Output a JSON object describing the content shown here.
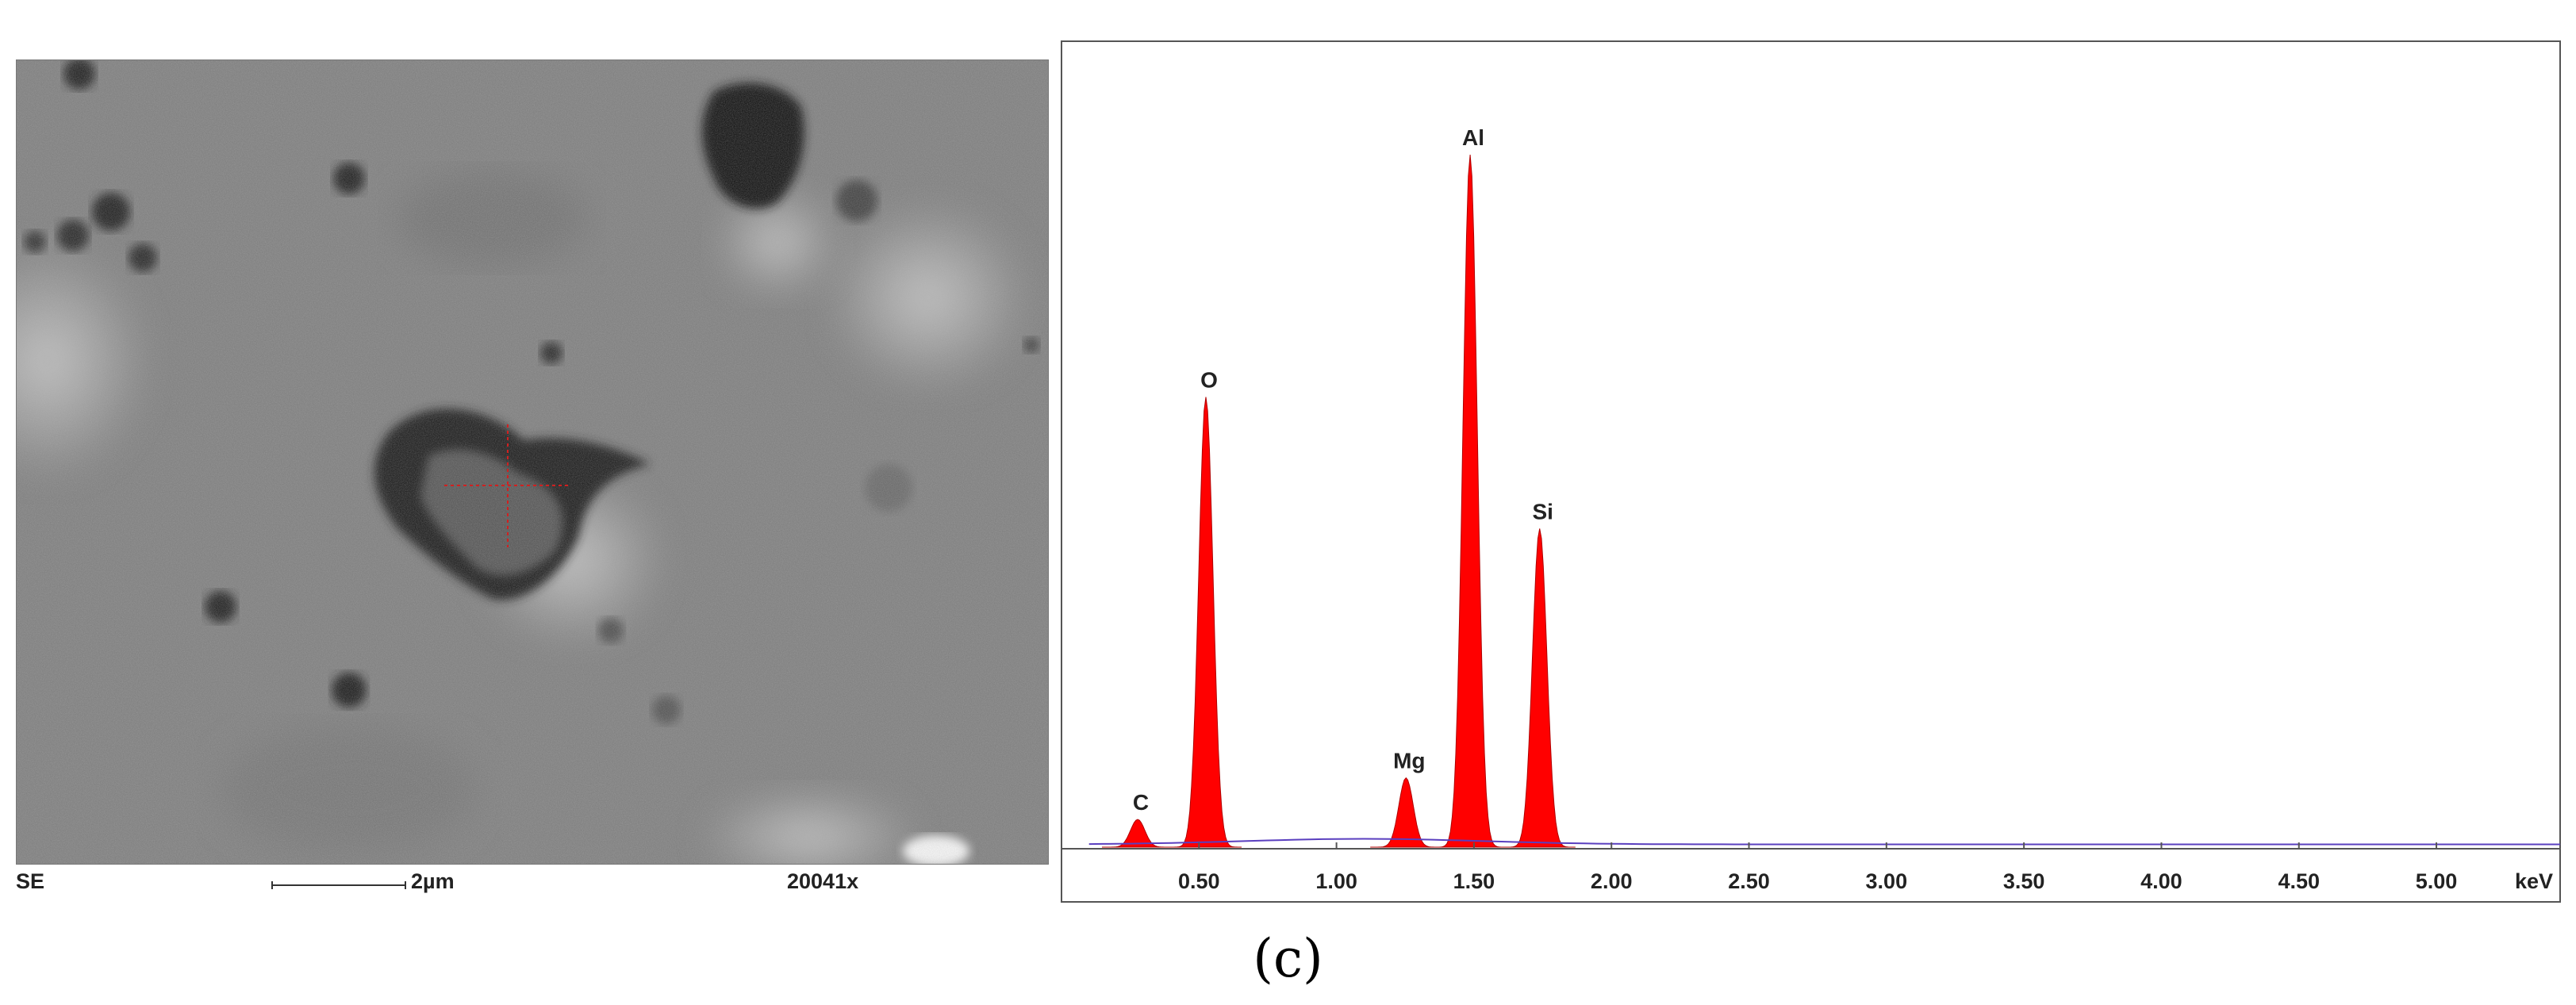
{
  "sem": {
    "mode": "SE",
    "scale_label": "2µm",
    "magnification": "20041x"
  },
  "panel_label": "(c)",
  "chart_data": {
    "type": "area",
    "title": "",
    "xlabel": "",
    "ylabel": "",
    "x_unit_label": "keV",
    "xlim": [
      0.0,
      5.45
    ],
    "ylim": [
      0,
      1000
    ],
    "grid": false,
    "xticks": [
      "0.50",
      "1.00",
      "1.50",
      "2.00",
      "2.50",
      "3.00",
      "3.50",
      "4.00",
      "4.50",
      "5.00"
    ],
    "fill_color": "#ff0000",
    "outline_color": "#5a3fbf",
    "peaks": [
      {
        "element": "C",
        "energy_kev": 0.277,
        "counts": 40
      },
      {
        "element": "O",
        "energy_kev": 0.525,
        "counts": 650
      },
      {
        "element": "Mg",
        "energy_kev": 1.253,
        "counts": 100
      },
      {
        "element": "Al",
        "energy_kev": 1.486,
        "counts": 1000
      },
      {
        "element": "Si",
        "energy_kev": 1.739,
        "counts": 460
      }
    ],
    "annotations": [
      "C",
      "O",
      "Mg",
      "Al",
      "Si"
    ]
  }
}
